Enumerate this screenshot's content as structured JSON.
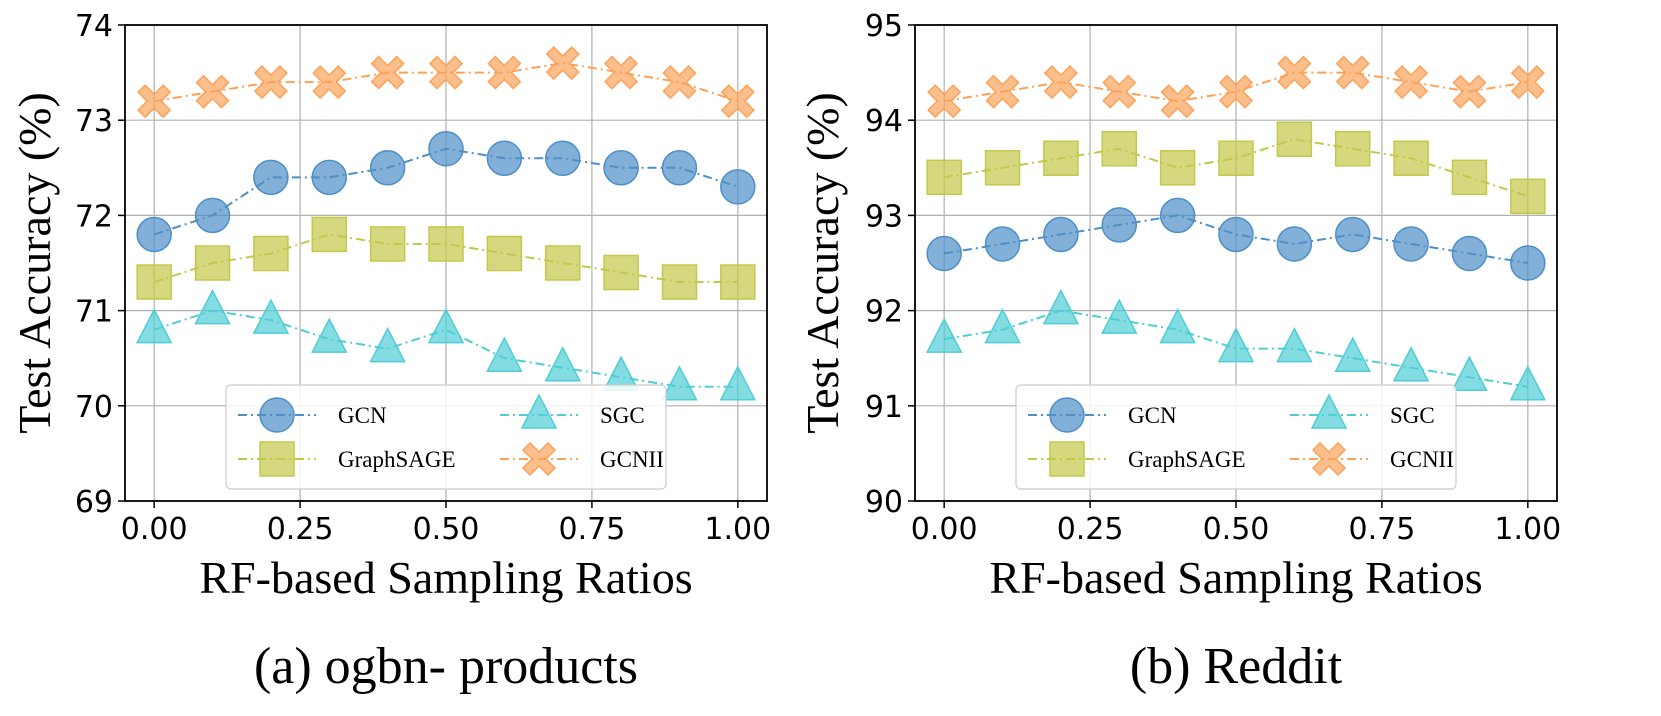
{
  "chart_data": [
    {
      "type": "line",
      "caption": "(a) ogbn- products",
      "xlabel": "RF-based Sampling Ratios",
      "ylabel": "Test Accuracy (%)",
      "x": [
        0.0,
        0.1,
        0.2,
        0.3,
        0.4,
        0.5,
        0.6,
        0.7,
        0.8,
        0.9,
        1.0
      ],
      "xlim": [
        -0.05,
        1.05
      ],
      "ylim": [
        69,
        74
      ],
      "xticks": [
        0.0,
        0.25,
        0.5,
        0.75,
        1.0
      ],
      "xtick_labels": [
        "0.00",
        "0.25",
        "0.50",
        "0.75",
        "1.00"
      ],
      "yticks": [
        69,
        70,
        71,
        72,
        73,
        74
      ],
      "ytick_labels": [
        "69",
        "70",
        "71",
        "72",
        "73",
        "74"
      ],
      "grid": true,
      "legend_position": "lower-center",
      "series": [
        {
          "name": "GCN",
          "marker": "circle",
          "color": "#4d8fc7",
          "values": [
            71.8,
            72.0,
            72.4,
            72.4,
            72.5,
            72.7,
            72.6,
            72.6,
            72.5,
            72.5,
            72.3
          ]
        },
        {
          "name": "GraphSAGE",
          "marker": "square",
          "color": "#c4c84a",
          "values": [
            71.3,
            71.5,
            71.6,
            71.8,
            71.7,
            71.7,
            71.6,
            71.5,
            71.4,
            71.3,
            71.3
          ]
        },
        {
          "name": "SGC",
          "marker": "triangle",
          "color": "#4fcdd6",
          "values": [
            70.8,
            71.0,
            70.9,
            70.7,
            70.6,
            70.8,
            70.5,
            70.4,
            70.3,
            70.2,
            70.2
          ]
        },
        {
          "name": "GCNII",
          "marker": "x",
          "color": "#fba25a",
          "values": [
            73.2,
            73.3,
            73.4,
            73.4,
            73.5,
            73.5,
            73.5,
            73.6,
            73.5,
            73.4,
            73.2
          ]
        }
      ]
    },
    {
      "type": "line",
      "caption": "(b) Reddit",
      "xlabel": "RF-based Sampling Ratios",
      "ylabel": "Test Accuracy (%)",
      "x": [
        0.0,
        0.1,
        0.2,
        0.3,
        0.4,
        0.5,
        0.6,
        0.7,
        0.8,
        0.9,
        1.0
      ],
      "xlim": [
        -0.05,
        1.05
      ],
      "ylim": [
        90,
        95
      ],
      "xticks": [
        0.0,
        0.25,
        0.5,
        0.75,
        1.0
      ],
      "xtick_labels": [
        "0.00",
        "0.25",
        "0.50",
        "0.75",
        "1.00"
      ],
      "yticks": [
        90,
        91,
        92,
        93,
        94,
        95
      ],
      "ytick_labels": [
        "90",
        "91",
        "92",
        "93",
        "94",
        "95"
      ],
      "grid": true,
      "legend_position": "lower-center",
      "series": [
        {
          "name": "GCN",
          "marker": "circle",
          "color": "#4d8fc7",
          "values": [
            92.6,
            92.7,
            92.8,
            92.9,
            93.0,
            92.8,
            92.7,
            92.8,
            92.7,
            92.6,
            92.5
          ]
        },
        {
          "name": "GraphSAGE",
          "marker": "square",
          "color": "#c4c84a",
          "values": [
            93.4,
            93.5,
            93.6,
            93.7,
            93.5,
            93.6,
            93.8,
            93.7,
            93.6,
            93.4,
            93.2
          ]
        },
        {
          "name": "SGC",
          "marker": "triangle",
          "color": "#4fcdd6",
          "values": [
            91.7,
            91.8,
            92.0,
            91.9,
            91.8,
            91.6,
            91.6,
            91.5,
            91.4,
            91.3,
            91.2
          ]
        },
        {
          "name": "GCNII",
          "marker": "x",
          "color": "#fba25a",
          "values": [
            94.2,
            94.3,
            94.4,
            94.3,
            94.2,
            94.3,
            94.5,
            94.5,
            94.4,
            94.3,
            94.4
          ]
        }
      ]
    }
  ]
}
